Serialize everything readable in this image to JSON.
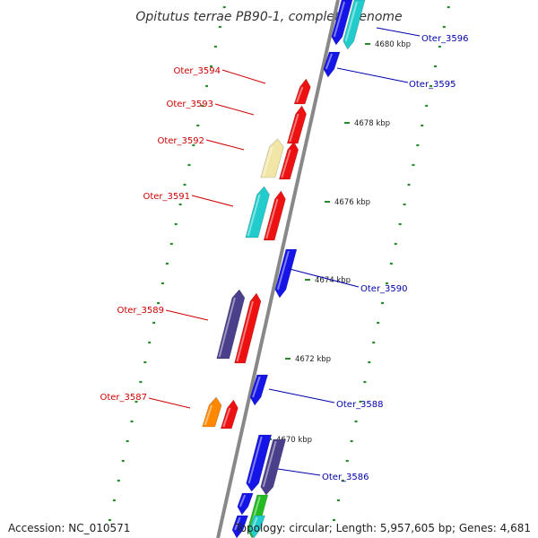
{
  "title": "Opitutus terrae PB90-1, complete genome",
  "accession_label": "Accession: NC_010571",
  "topology_label": "Topology: circular; Length: 5,957,605 bp; Genes: 4,681",
  "colors": {
    "backbone": "#8c8c8c",
    "ticks": "#2a8a2a",
    "forward_label": "#cc0000",
    "reverse_label": "#0000aa"
  },
  "ticks": [
    "4680 kbp",
    "4678 kbp",
    "4676 kbp",
    "4674 kbp",
    "4672 kbp",
    "4670 kbp"
  ],
  "genes": [
    {
      "name": "Oter_3596",
      "strand": "reverse",
      "color": "#1515e8"
    },
    {
      "name": "Oter_3595",
      "strand": "reverse",
      "color": "#1515e8"
    },
    {
      "name": "Oter_3594",
      "strand": "forward",
      "color": "#ee1111"
    },
    {
      "name": "Oter_3593",
      "strand": "forward",
      "color": "#ee1111"
    },
    {
      "name": "Oter_3592",
      "strand": "forward",
      "color": "#f2e6a6"
    },
    {
      "name": "Oter_3591",
      "strand": "forward",
      "color": "#22cccc"
    },
    {
      "name": "Oter_3590",
      "strand": "reverse",
      "color": "#1515e8"
    },
    {
      "name": "Oter_3589",
      "strand": "forward",
      "color": "#4a3f8a"
    },
    {
      "name": "Oter_3588",
      "strand": "reverse",
      "color": "#1515e8"
    },
    {
      "name": "Oter_3587",
      "strand": "forward",
      "color": "#ff8800"
    },
    {
      "name": "Oter_3586",
      "strand": "reverse",
      "color": "#4a3f8a"
    }
  ]
}
